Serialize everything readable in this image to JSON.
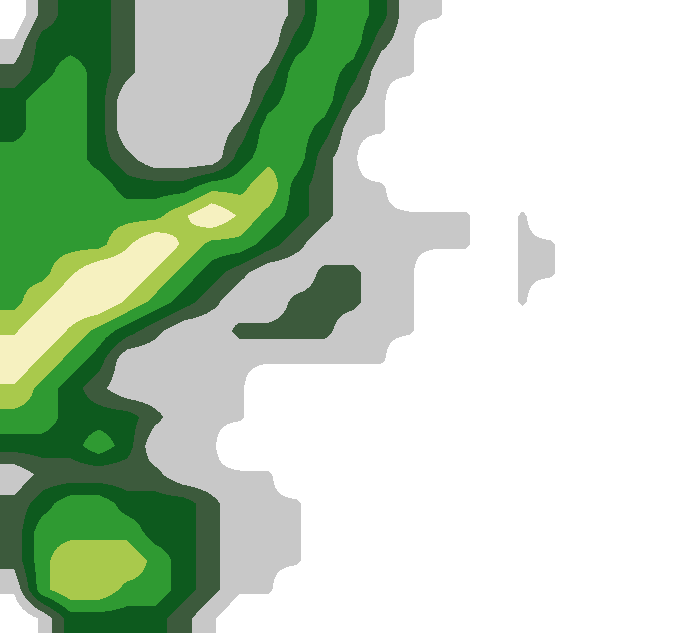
{
  "chart_data": {
    "type": "heatmap",
    "tick_labels": false,
    "cells": [
      [
        0,
        2,
        3,
        3,
        2,
        1,
        1,
        1,
        1,
        1,
        2,
        4,
        4,
        3,
        1,
        1,
        0,
        0,
        0,
        0,
        0,
        0,
        0,
        0
      ],
      [
        1,
        3,
        3,
        3,
        2,
        1,
        1,
        1,
        1,
        1,
        3,
        4,
        4,
        2,
        1,
        0,
        0,
        0,
        0,
        0,
        0,
        0,
        0,
        0
      ],
      [
        2,
        3,
        4,
        3,
        2,
        1,
        1,
        1,
        1,
        2,
        4,
        4,
        3,
        1,
        1,
        0,
        0,
        0,
        0,
        0,
        0,
        0,
        0,
        0
      ],
      [
        3,
        4,
        4,
        3,
        1,
        1,
        1,
        1,
        1,
        3,
        4,
        4,
        2,
        1,
        0,
        0,
        0,
        0,
        0,
        0,
        0,
        0,
        0,
        0
      ],
      [
        3,
        4,
        4,
        3,
        1,
        1,
        1,
        1,
        2,
        4,
        4,
        3,
        1,
        1,
        0,
        0,
        0,
        0,
        0,
        0,
        0,
        0,
        0,
        0
      ],
      [
        4,
        4,
        4,
        3,
        2,
        1,
        1,
        1,
        3,
        4,
        4,
        2,
        1,
        0,
        0,
        0,
        0,
        0,
        0,
        0,
        0,
        0,
        0,
        0
      ],
      [
        4,
        4,
        4,
        4,
        3,
        3,
        3,
        4,
        4,
        5,
        3,
        2,
        1,
        1,
        0,
        0,
        0,
        0,
        0,
        0,
        0,
        0,
        0,
        0
      ],
      [
        4,
        4,
        4,
        4,
        4,
        4,
        5,
        6,
        5,
        4,
        3,
        2,
        1,
        1,
        1,
        1,
        1,
        0,
        1,
        0,
        0,
        0,
        0,
        0
      ],
      [
        4,
        4,
        4,
        4,
        5,
        6,
        5,
        4,
        4,
        3,
        2,
        1,
        1,
        1,
        1,
        1,
        1,
        0,
        1,
        1,
        0,
        0,
        0,
        0
      ],
      [
        4,
        4,
        5,
        6,
        6,
        5,
        4,
        3,
        2,
        1,
        1,
        2,
        2,
        1,
        1,
        0,
        0,
        0,
        1,
        1,
        0,
        0,
        0,
        0
      ],
      [
        4,
        5,
        6,
        6,
        5,
        4,
        3,
        2,
        1,
        1,
        2,
        2,
        2,
        1,
        1,
        0,
        0,
        0,
        1,
        0,
        0,
        0,
        0,
        0
      ],
      [
        5,
        6,
        5,
        4,
        3,
        2,
        1,
        1,
        2,
        2,
        2,
        2,
        1,
        1,
        1,
        0,
        0,
        0,
        0,
        0,
        0,
        0,
        0,
        0
      ],
      [
        6,
        5,
        4,
        3,
        1,
        1,
        1,
        1,
        1,
        1,
        1,
        1,
        1,
        1,
        0,
        0,
        0,
        0,
        0,
        0,
        0,
        0,
        0,
        0
      ],
      [
        5,
        4,
        3,
        2,
        1,
        1,
        1,
        1,
        1,
        0,
        0,
        0,
        0,
        0,
        0,
        0,
        0,
        0,
        0,
        0,
        0,
        0,
        0,
        0
      ],
      [
        4,
        4,
        3,
        3,
        3,
        2,
        1,
        1,
        1,
        0,
        0,
        0,
        0,
        0,
        0,
        0,
        0,
        0,
        0,
        0,
        0,
        0,
        0,
        0
      ],
      [
        3,
        3,
        3,
        4,
        3,
        1,
        1,
        1,
        0,
        0,
        0,
        0,
        0,
        0,
        0,
        0,
        0,
        0,
        0,
        0,
        0,
        0,
        0,
        0
      ],
      [
        1,
        2,
        2,
        2,
        2,
        2,
        1,
        1,
        1,
        1,
        0,
        0,
        0,
        0,
        0,
        0,
        0,
        0,
        0,
        0,
        0,
        0,
        0,
        0
      ],
      [
        2,
        3,
        4,
        4,
        3,
        3,
        3,
        2,
        1,
        1,
        1,
        0,
        0,
        0,
        0,
        0,
        0,
        0,
        0,
        0,
        0,
        0,
        0,
        0
      ],
      [
        2,
        4,
        4,
        4,
        4,
        3,
        3,
        2,
        1,
        1,
        1,
        0,
        0,
        0,
        0,
        0,
        0,
        0,
        0,
        0,
        0,
        0,
        0,
        0
      ],
      [
        2,
        4,
        5,
        5,
        5,
        4,
        3,
        2,
        1,
        1,
        1,
        0,
        0,
        0,
        0,
        0,
        0,
        0,
        0,
        0,
        0,
        0,
        0,
        0
      ],
      [
        1,
        4,
        5,
        5,
        4,
        4,
        3,
        2,
        1,
        1,
        0,
        0,
        0,
        0,
        0,
        0,
        0,
        0,
        0,
        0,
        0,
        0,
        0,
        0
      ],
      [
        0,
        1,
        3,
        3,
        3,
        3,
        2,
        1,
        0,
        0,
        0,
        0,
        0,
        0,
        0,
        0,
        0,
        0,
        0,
        0,
        0,
        0,
        0,
        0
      ]
    ]
  }
}
